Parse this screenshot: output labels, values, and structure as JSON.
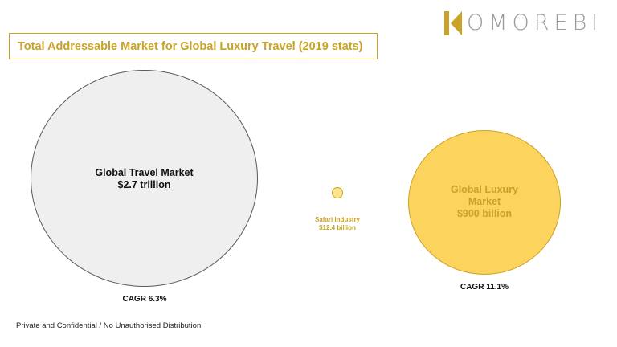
{
  "logo": {
    "text": "OMOREBI",
    "color": "#c9a227"
  },
  "title": "Total Addressable Market for Global Luxury Travel (2019 stats)",
  "markets": {
    "travel": {
      "line1": "Global Travel Market",
      "line2": "$2.7 trillion",
      "cagr": "CAGR 6.3%",
      "fill": "#efefef"
    },
    "safari": {
      "line1": "Safari Industry",
      "line2": "$12.4 billion",
      "fill": "#fde68a"
    },
    "luxury": {
      "line1": "Global Luxury",
      "line2": "Market",
      "line3": "$900 billion",
      "cagr": "CAGR 11.1%",
      "fill": "#fcd45d"
    }
  },
  "footer": "Private and Confidential / No Unauthorised Distribution",
  "colors": {
    "accent": "#c9a227",
    "text": "#111111"
  }
}
